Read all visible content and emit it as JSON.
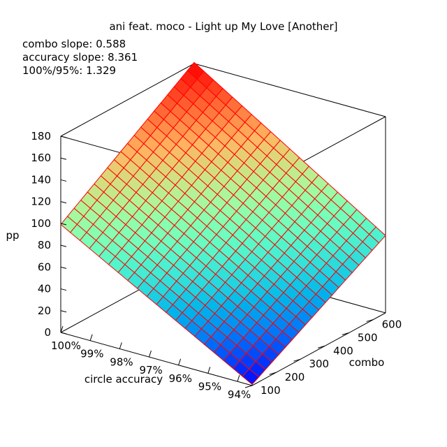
{
  "chart_data": {
    "type": "surface",
    "title": "ani feat. moco - Light up My Love [Another]",
    "annotations": [
      "combo slope: 0.588",
      "accuracy slope: 8.361",
      "100%/95%: 1.329"
    ],
    "zlabel": "pp",
    "xlabel": "circle accuracy",
    "ylabel": "combo",
    "z_ticks": [
      "0",
      "20",
      "40",
      "60",
      "80",
      "100",
      "120",
      "140",
      "160",
      "180"
    ],
    "z_range": [
      0,
      180
    ],
    "accuracy_ticks": [
      "100%",
      "99%",
      "98%",
      "97%",
      "96%",
      "95%",
      "94%"
    ],
    "accuracy_range": [
      93.5,
      100
    ],
    "combo_ticks": [
      "100",
      "200",
      "300",
      "400",
      "500",
      "600"
    ],
    "combo_range": [
      100,
      650
    ],
    "corner_values": [
      {
        "accuracy": 100,
        "combo": 100,
        "pp": 99
      },
      {
        "accuracy": 100,
        "combo": 650,
        "pp": 181
      },
      {
        "accuracy": 93.5,
        "combo": 100,
        "pp": 1
      },
      {
        "accuracy": 93.5,
        "combo": 650,
        "pp": 71
      }
    ],
    "colormap": "rainbow",
    "mesh_color": "#ff0000",
    "grid": false
  }
}
